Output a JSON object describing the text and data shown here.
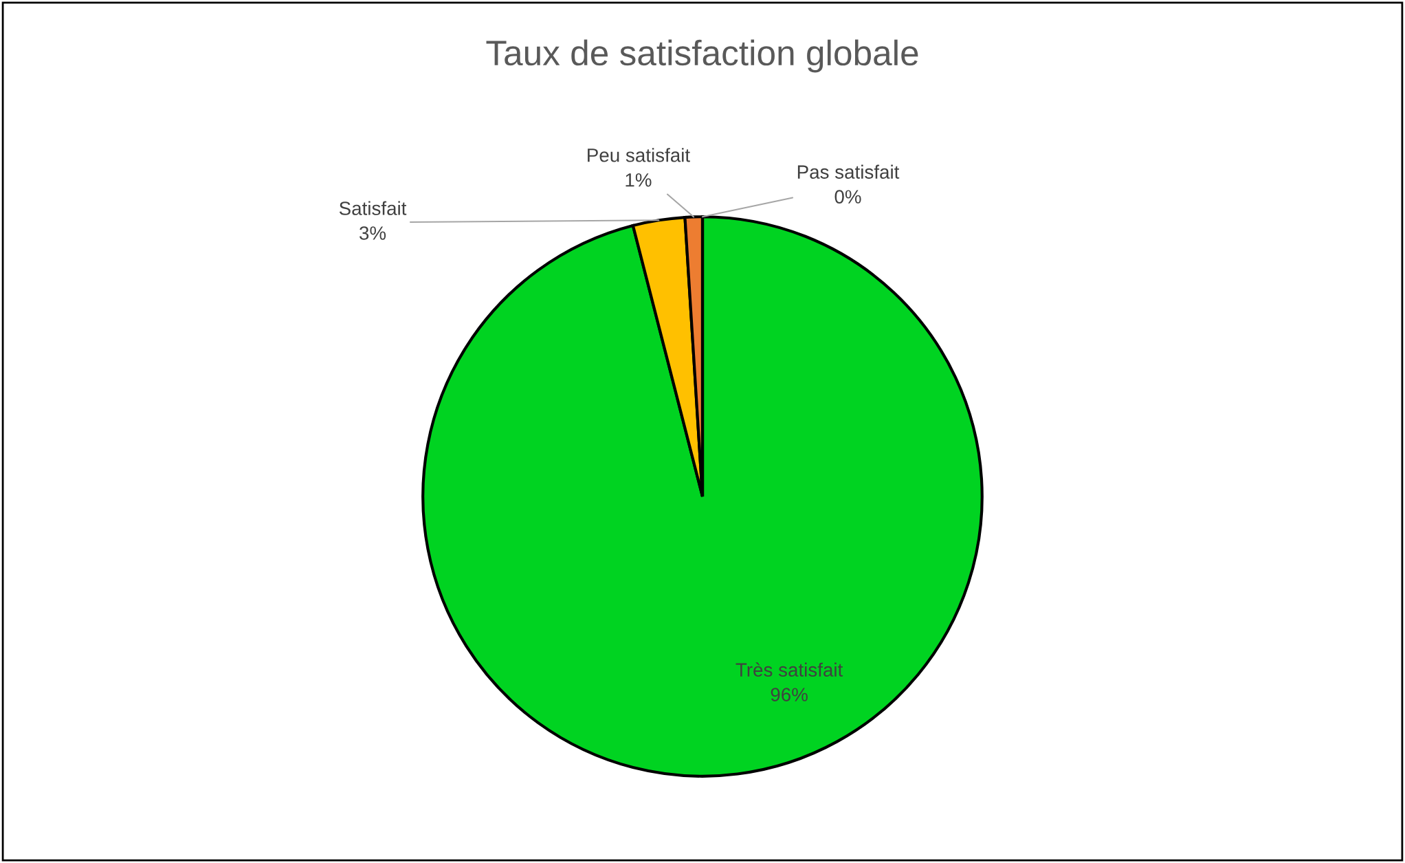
{
  "chart_data": {
    "type": "pie",
    "title": "Taux de satisfaction globale",
    "categories": [
      "Très satisfait",
      "Satisfait",
      "Peu satisfait",
      "Pas satisfait"
    ],
    "values": [
      96,
      3,
      1,
      0
    ],
    "colors": [
      "#00d321",
      "#ffc000",
      "#ed7d31",
      "#c00000"
    ],
    "value_labels": [
      "96%",
      "3%",
      "1%",
      "0%"
    ],
    "legend": false
  }
}
